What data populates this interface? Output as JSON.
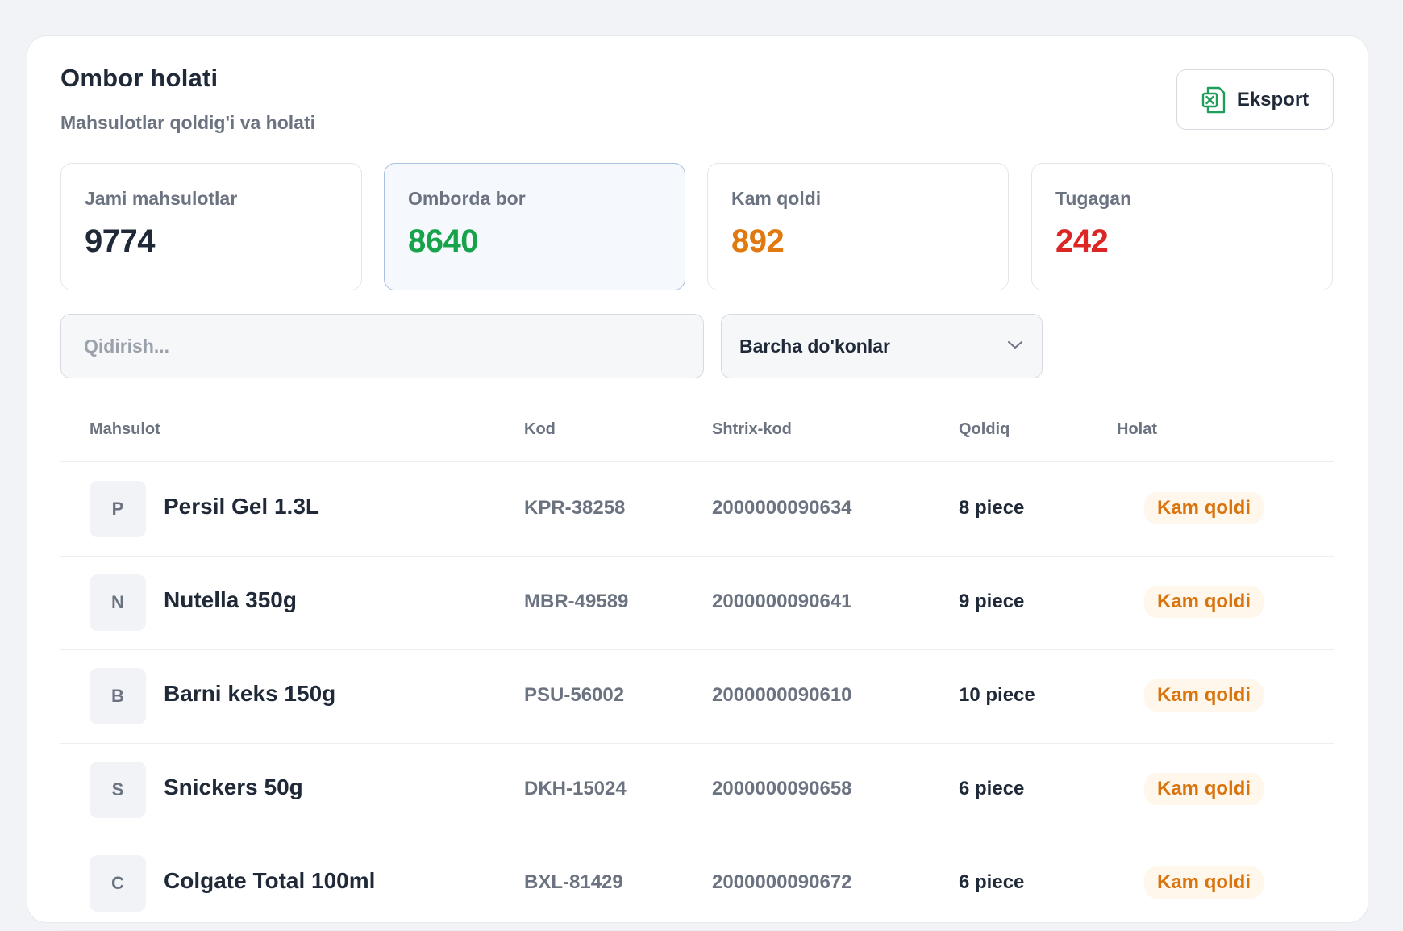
{
  "header": {
    "title": "Ombor holati",
    "subtitle": "Mahsulotlar qoldig'i va holati",
    "export_label": "Eksport"
  },
  "stats": [
    {
      "label": "Jami mahsulotlar",
      "value": "9774",
      "color": "#1f2937"
    },
    {
      "label": "Omborda bor",
      "value": "8640",
      "color": "#16a34a"
    },
    {
      "label": "Kam qoldi",
      "value": "892",
      "color": "#e07a10"
    },
    {
      "label": "Tugagan",
      "value": "242",
      "color": "#dc2626"
    }
  ],
  "filters": {
    "search_placeholder": "Qidirish...",
    "store_select_value": "Barcha do'konlar"
  },
  "table": {
    "columns": [
      "Mahsulot",
      "Kod",
      "Shtrix-kod",
      "Qoldiq",
      "Holat"
    ],
    "rows": [
      {
        "initial": "P",
        "name": "Persil Gel 1.3L",
        "code": "KPR-38258",
        "barcode": "2000000090634",
        "qty": "8 piece",
        "status": "Kam qoldi"
      },
      {
        "initial": "N",
        "name": "Nutella 350g",
        "code": "MBR-49589",
        "barcode": "2000000090641",
        "qty": "9 piece",
        "status": "Kam qoldi"
      },
      {
        "initial": "B",
        "name": "Barni keks 150g",
        "code": "PSU-56002",
        "barcode": "2000000090610",
        "qty": "10 piece",
        "status": "Kam qoldi"
      },
      {
        "initial": "S",
        "name": "Snickers 50g",
        "code": "DKH-15024",
        "barcode": "2000000090658",
        "qty": "6 piece",
        "status": "Kam qoldi"
      },
      {
        "initial": "C",
        "name": "Colgate Total 100ml",
        "code": "BXL-81429",
        "barcode": "2000000090672",
        "qty": "6 piece",
        "status": "Kam qoldi"
      }
    ]
  },
  "colors": {
    "accent_green": "#16a34a",
    "warning_orange": "#e07a10",
    "danger_red": "#dc2626",
    "excel_icon": "#1e9e5a"
  },
  "icons": {
    "export": "excel-file-icon",
    "select": "chevron-down-icon"
  }
}
